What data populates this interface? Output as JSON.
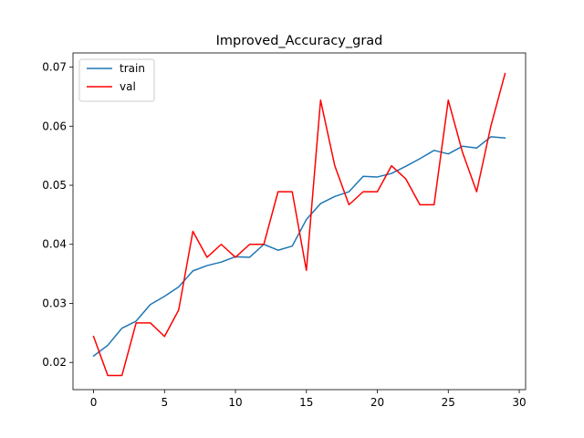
{
  "chart_data": {
    "type": "line",
    "title": "Improved_Accuracy_grad",
    "xlabel": "",
    "ylabel": "",
    "xlim": [
      -1.45,
      30.45
    ],
    "ylim": [
      0.0154,
      0.0724
    ],
    "xticks": [
      0,
      5,
      10,
      15,
      20,
      25,
      30
    ],
    "yticks": [
      0.02,
      0.03,
      0.04,
      0.05,
      0.06,
      0.07
    ],
    "xtick_labels": [
      "0",
      "5",
      "10",
      "15",
      "20",
      "25",
      "30"
    ],
    "ytick_labels": [
      "0.02",
      "0.03",
      "0.04",
      "0.05",
      "0.06",
      "0.07"
    ],
    "grid": false,
    "legend_position": "top-left",
    "x": [
      0,
      1,
      2,
      3,
      4,
      5,
      6,
      7,
      8,
      9,
      10,
      11,
      12,
      13,
      14,
      15,
      16,
      17,
      18,
      19,
      20,
      21,
      22,
      23,
      24,
      25,
      26,
      27,
      28,
      29
    ],
    "series": [
      {
        "name": "train",
        "color": "#1f77b4",
        "values": [
          0.0211,
          0.0229,
          0.0258,
          0.027,
          0.0298,
          0.0312,
          0.0328,
          0.0355,
          0.0364,
          0.037,
          0.0379,
          0.0378,
          0.04,
          0.039,
          0.0397,
          0.0442,
          0.0469,
          0.0481,
          0.0489,
          0.0515,
          0.0514,
          0.052,
          0.0532,
          0.0545,
          0.0559,
          0.0553,
          0.0566,
          0.0563,
          0.0582,
          0.058
        ]
      },
      {
        "name": "val",
        "color": "#ff0000",
        "values": [
          0.0244,
          0.0178,
          0.0178,
          0.0267,
          0.0267,
          0.0244,
          0.0289,
          0.0422,
          0.0378,
          0.04,
          0.0378,
          0.04,
          0.04,
          0.0489,
          0.0489,
          0.0356,
          0.0644,
          0.0533,
          0.0467,
          0.0489,
          0.0489,
          0.0533,
          0.0511,
          0.0467,
          0.0467,
          0.0644,
          0.0556,
          0.0489,
          0.06,
          0.0689
        ]
      }
    ]
  }
}
